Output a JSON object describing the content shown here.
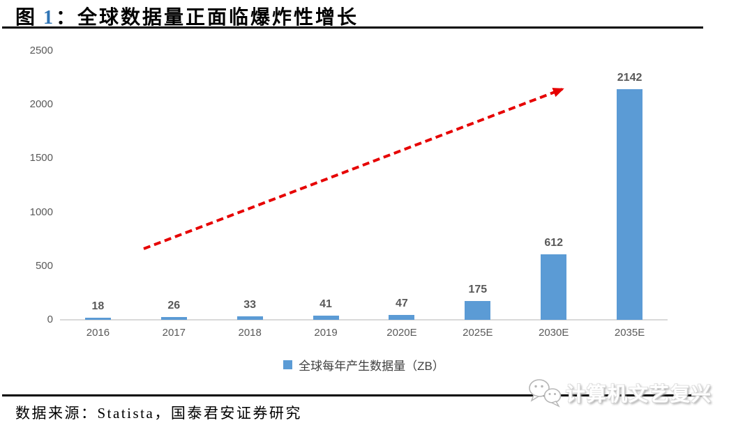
{
  "figure": {
    "label_prefix": "图",
    "label_number": "1",
    "label_colon": "：",
    "title_text": "全球数据量正面临爆炸性增长",
    "number_color": "#2E74B5"
  },
  "chart_data": {
    "type": "bar",
    "title": "图 1：全球数据量正面临爆炸性增长",
    "categories": [
      "2016",
      "2017",
      "2018",
      "2019",
      "2020E",
      "2025E",
      "2030E",
      "2035E"
    ],
    "values": [
      18,
      26,
      33,
      41,
      47,
      175,
      612,
      2142
    ],
    "series": [
      {
        "name": "全球每年产生数据量（ZB）",
        "values": [
          18,
          26,
          33,
          41,
          47,
          175,
          612,
          2142
        ]
      }
    ],
    "xlabel": "",
    "ylabel": "",
    "ylim": [
      0,
      2500
    ],
    "yticks": [
      0,
      500,
      1000,
      1500,
      2000,
      2500
    ],
    "grid": false,
    "legend_position": "bottom",
    "bar_color": "#5B9BD5",
    "tick_label_color": "#595959",
    "value_label_color": "#595959",
    "axis_line_color": "#D9D9D9",
    "annotation": {
      "type": "trend-arrow",
      "style": "dashed",
      "color": "#E60000",
      "direction": "up-right"
    }
  },
  "legend": {
    "label": "全球每年产生数据量（ZB）",
    "swatch_color": "#5B9BD5"
  },
  "source": {
    "text": "数据来源：Statista，国泰君安证券研究"
  },
  "watermark": {
    "text": "计算机文艺复兴",
    "icon": "wechat-chat-bubbles"
  }
}
